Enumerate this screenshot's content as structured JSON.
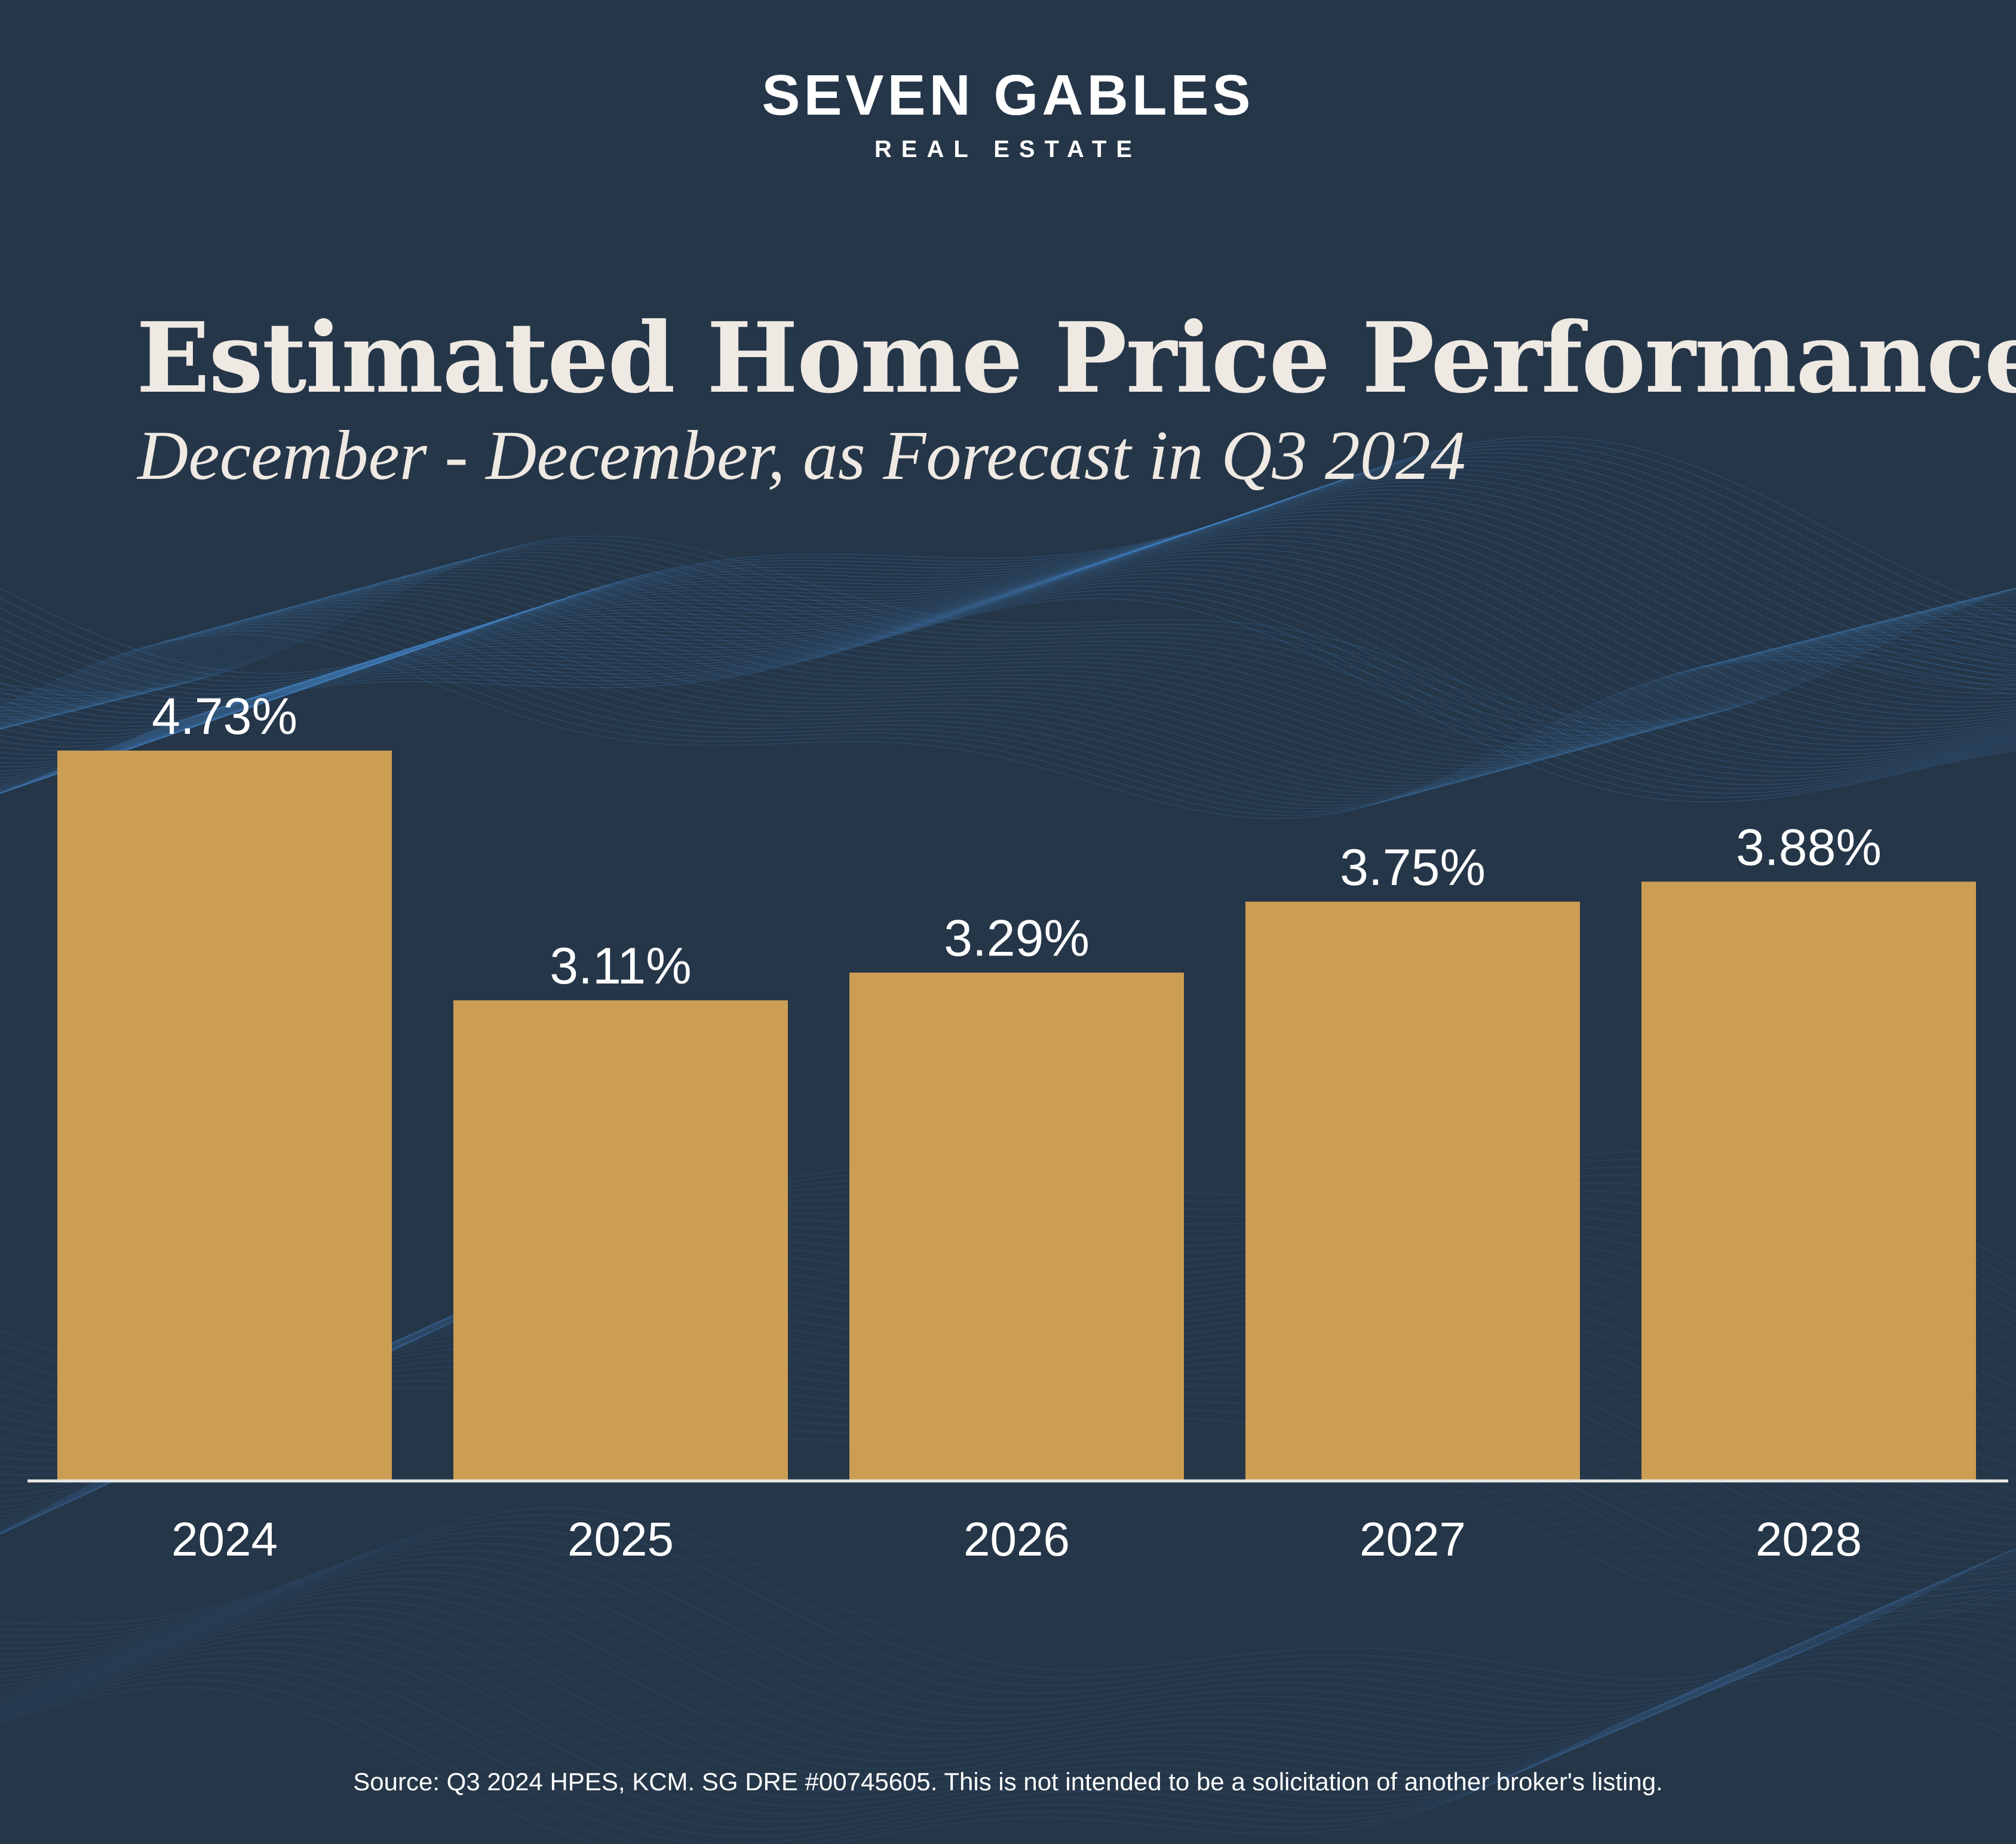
{
  "brand": {
    "name": "SEVEN GABLES",
    "tagline": "REAL ESTATE"
  },
  "colors": {
    "background": "#253648",
    "bar": "#cc9e54",
    "text": "#ffffff",
    "title": "#efe9e3",
    "wave": "#4a8fd4"
  },
  "chart_data": {
    "type": "bar",
    "title": "Estimated Home Price Performance",
    "subtitle": "December - December, as Forecast in Q3 2024",
    "xlabel": "",
    "ylabel": "",
    "categories": [
      "2024",
      "2025",
      "2026",
      "2027",
      "2028"
    ],
    "values": [
      4.73,
      3.11,
      3.29,
      3.75,
      3.88
    ],
    "value_labels": [
      "4.73%",
      "3.11%",
      "3.29%",
      "3.75%",
      "3.88%"
    ],
    "ylim": [
      0,
      4.73
    ],
    "grid": false,
    "legend": "none"
  },
  "footer": {
    "source": "Source: Q3 2024 HPES, KCM. SG DRE #00745605. This is not intended to be a solicitation of another broker's listing."
  }
}
